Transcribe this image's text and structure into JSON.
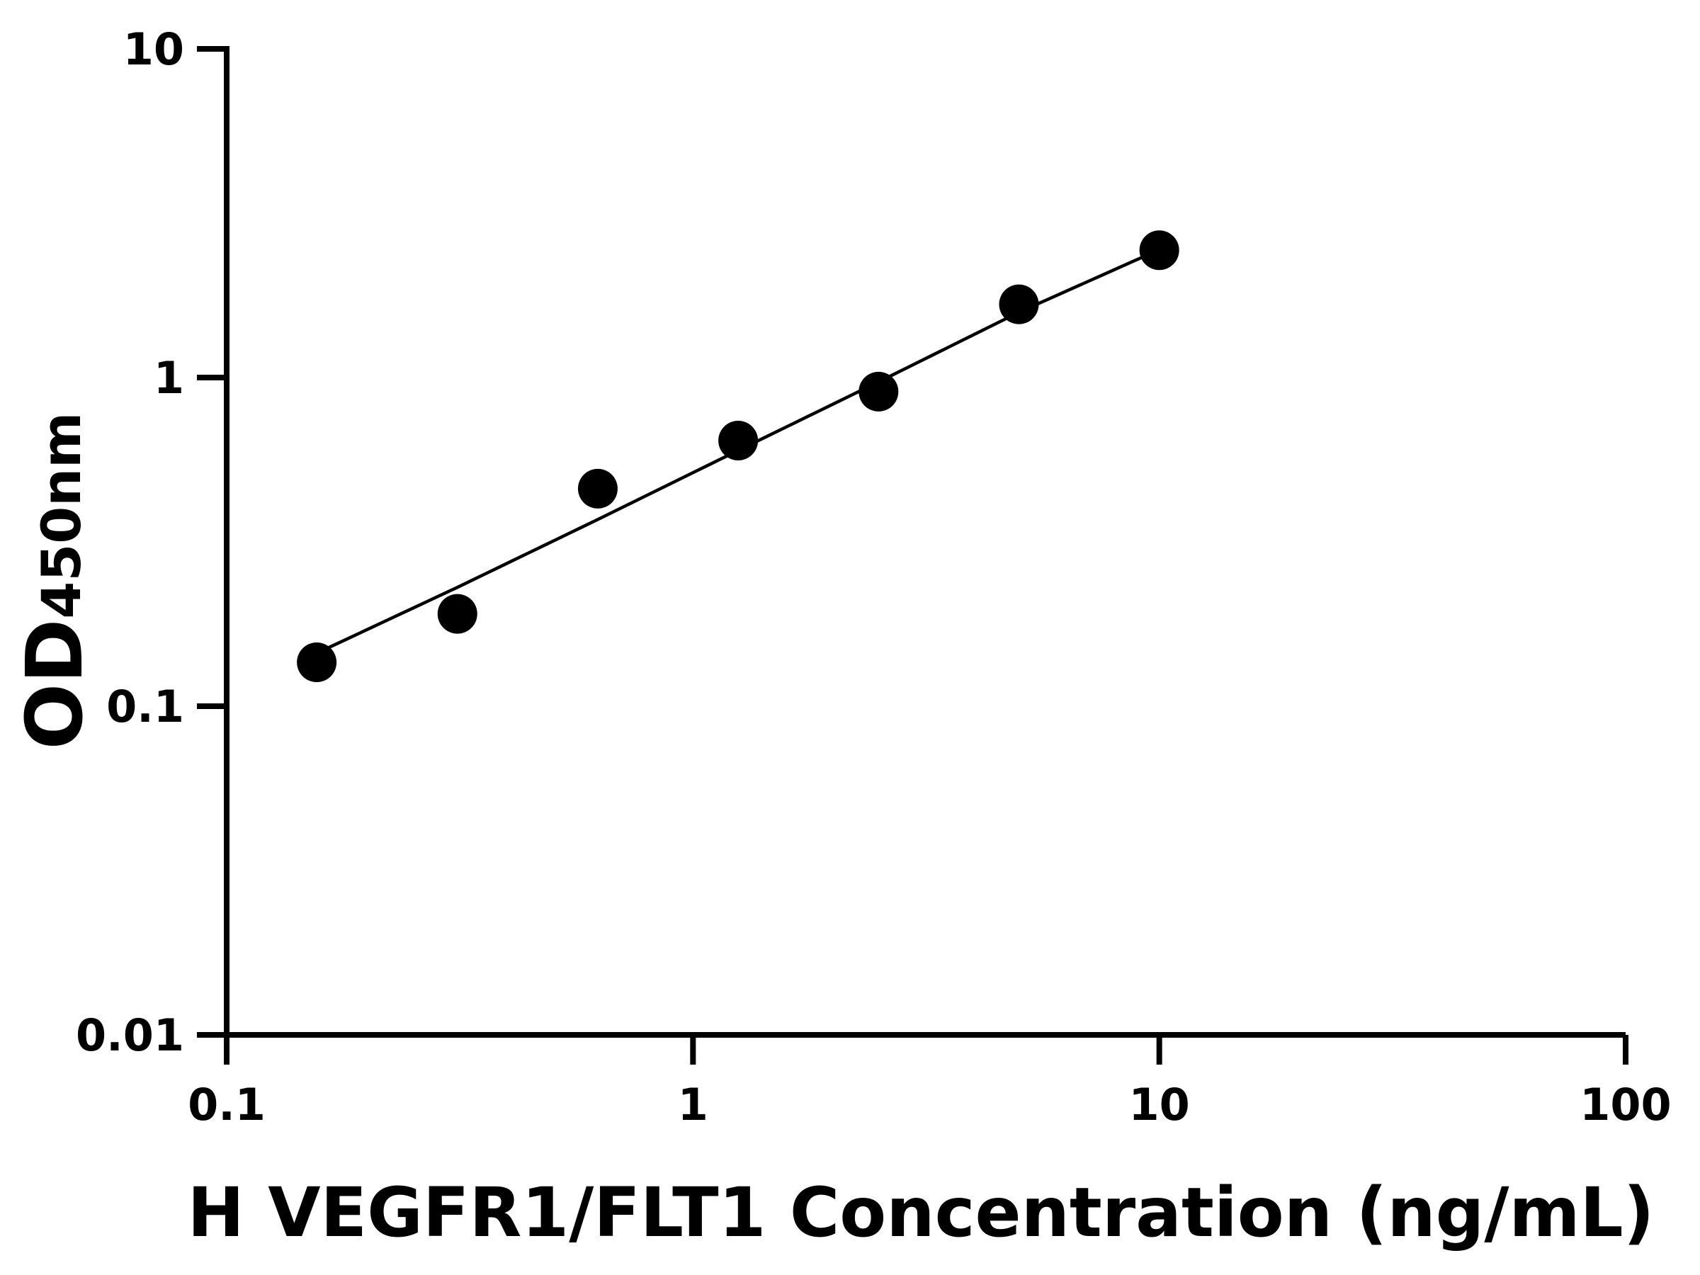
{
  "chart_data": {
    "type": "scatter",
    "title": "",
    "xlabel": "H VEGFR1/FLT1 Concentration (ng/mL)",
    "ylabel_main": "OD",
    "ylabel_sub": "450nm",
    "x_scale": "log",
    "y_scale": "log",
    "xlim": [
      0.1,
      100
    ],
    "ylim": [
      0.01,
      10
    ],
    "x_ticks": [
      0.1,
      1,
      10,
      100
    ],
    "x_tick_labels": [
      "0.1",
      "1",
      "10",
      "100"
    ],
    "y_ticks": [
      0.01,
      0.1,
      1,
      10
    ],
    "y_tick_labels": [
      "0.01",
      "0.1",
      "1",
      "10"
    ],
    "grid": false,
    "legend": "none",
    "colors": {
      "points": "#000000",
      "curve": "#000000",
      "axes": "#000000"
    },
    "series": [
      {
        "type": "scatter",
        "x": [
          0.156,
          0.3125,
          0.625,
          1.25,
          2.5,
          5,
          10
        ],
        "y": [
          0.136,
          0.191,
          0.459,
          0.643,
          0.906,
          1.67,
          2.44
        ]
      },
      {
        "type": "line",
        "x": [
          0.156,
          0.3125,
          0.625,
          1.25,
          2.5,
          5,
          10
        ],
        "y": [
          0.145,
          0.23,
          0.37,
          0.6,
          0.97,
          1.58,
          2.45
        ]
      }
    ]
  }
}
